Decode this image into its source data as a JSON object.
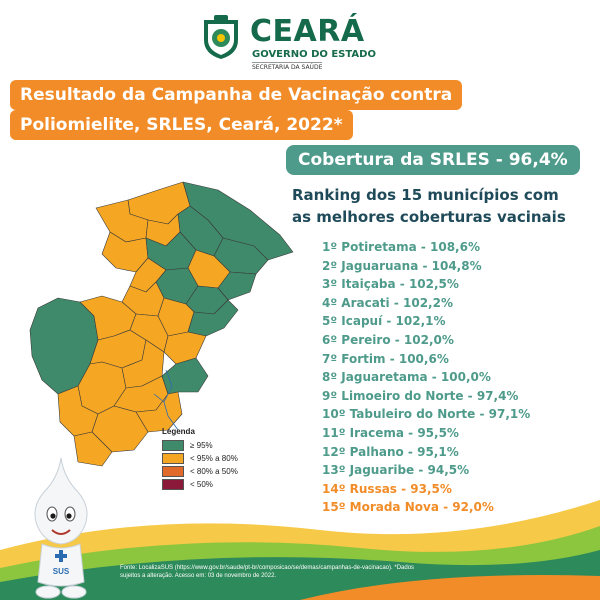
{
  "header": {
    "brand_name": "CEARÁ",
    "brand_sub": "GOVERNO DO ESTADO",
    "secretaria": "SECRETARIA DA SAÚDE"
  },
  "title": {
    "line1": "Resultado da Campanha de Vacinação contra",
    "line2": "Poliomielite, SRLES, Ceará, 2022*"
  },
  "coverage": "Cobertura da SRLES - 96,4%",
  "ranking_title": {
    "line1": "Ranking dos 15 municípios com",
    "line2": "as melhores coberturas vacinais"
  },
  "ranking": [
    {
      "text": "1º Potiretama - 108,6%",
      "color": "#4e9b8b"
    },
    {
      "text": "2º Jaguaruana - 104,8%",
      "color": "#4e9b8b"
    },
    {
      "text": "3º Itaiçaba - 102,5%",
      "color": "#4e9b8b"
    },
    {
      "text": "4º Aracati - 102,2%",
      "color": "#4e9b8b"
    },
    {
      "text": "5º Icapuí - 102,1%",
      "color": "#4e9b8b"
    },
    {
      "text": "6º Pereiro - 102,0%",
      "color": "#4e9b8b"
    },
    {
      "text": "7º Fortim - 100,6%",
      "color": "#4e9b8b"
    },
    {
      "text": "8º Jaguaretama - 100,0%",
      "color": "#4e9b8b"
    },
    {
      "text": "9º Limoeiro do Norte - 97,4%",
      "color": "#4e9b8b"
    },
    {
      "text": "10º Tabuleiro do Norte - 97,1%",
      "color": "#4e9b8b"
    },
    {
      "text": "11º Iracema - 95,5%",
      "color": "#4e9b8b"
    },
    {
      "text": "12º Palhano - 95,1%",
      "color": "#4e9b8b"
    },
    {
      "text": "13º Jaguaribe - 94,5%",
      "color": "#4e9b8b"
    },
    {
      "text": "14º Russas - 93,5%",
      "color": "#f28c28"
    },
    {
      "text": "15º Morada Nova - 92,0%",
      "color": "#f28c28"
    }
  ],
  "legend": {
    "title": "Legenda",
    "items": [
      {
        "label": "≥ 95%",
        "color": "#3f8a6a"
      },
      {
        "label": "< 95% a 80%",
        "color": "#f5a623"
      },
      {
        "label": "< 80% a 50%",
        "color": "#e06a2a"
      },
      {
        "label": "< 50%",
        "color": "#8b1a3a"
      }
    ]
  },
  "source": {
    "line1": "Fonte: LocalizaSUS (https://www.gov.br/saude/pt-br/composicao/se/demas/campanhas-de-vacinacao). *Dados",
    "line2": "sujeitos a alteração. Acesso em: 03 de novembro de 2022."
  },
  "mascot_badge": "SUS",
  "colors": {
    "orange": "#f28c28",
    "teal": "#4e9b8b",
    "dark_green": "#146a4a",
    "map_green": "#3f8a6a",
    "map_orange": "#f5a623"
  }
}
